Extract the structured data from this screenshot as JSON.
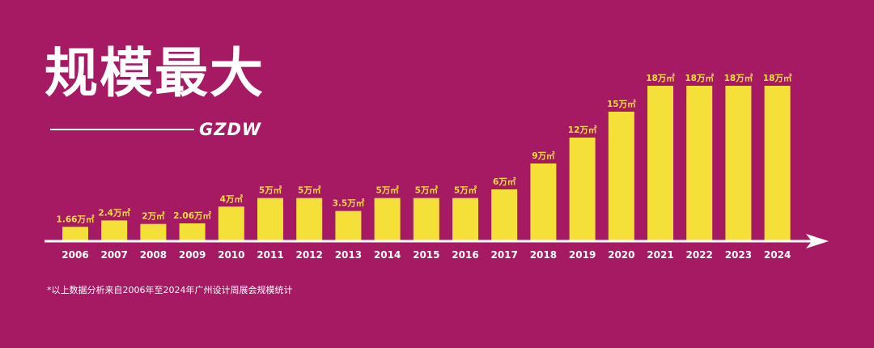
{
  "header": {
    "title": "规模最大",
    "brand": "GZDW"
  },
  "footnote": "*以上数据分析来自2006年至2024年广州设计周展会规模统计",
  "colors": {
    "background": "#a61a64",
    "bar": "#f5e03a",
    "label": "#f5e03a",
    "axis": "#ffffff"
  },
  "chart_data": {
    "type": "bar",
    "categories": [
      "2006",
      "2007",
      "2008",
      "2009",
      "2010",
      "2011",
      "2012",
      "2013",
      "2014",
      "2015",
      "2016",
      "2017",
      "2018",
      "2019",
      "2020",
      "2021",
      "2022",
      "2023",
      "2024"
    ],
    "values": [
      1.66,
      2.4,
      2,
      2.06,
      4,
      5,
      5,
      3.5,
      5,
      5,
      5,
      6,
      9,
      12,
      15,
      18,
      18,
      18,
      18
    ],
    "data_labels": [
      "1.66万㎡",
      "2.4万㎡",
      "2万㎡",
      "2.06万㎡",
      "4万㎡",
      "5万㎡",
      "5万㎡",
      "3.5万㎡",
      "5万㎡",
      "5万㎡",
      "5万㎡",
      "6万㎡",
      "9万㎡",
      "12万㎡",
      "15万㎡",
      "18万㎡",
      "18万㎡",
      "18万㎡",
      "18万㎡"
    ],
    "title": "",
    "xlabel": "",
    "ylabel": "",
    "ylim": [
      0,
      18
    ],
    "grid": false,
    "legend": "none"
  }
}
